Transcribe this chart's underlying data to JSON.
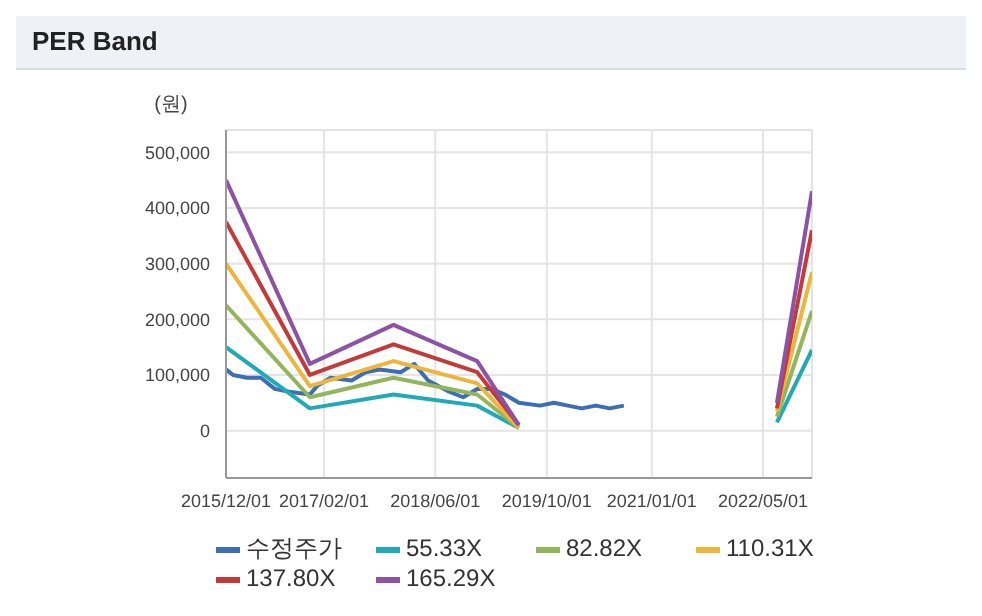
{
  "chart_data": {
    "type": "line",
    "title": "PER Band",
    "ylabel": "(원)",
    "x": [
      "2015-12-01",
      "2016-12-01",
      "2017-12-01",
      "2018-12-01",
      "2019-06-01",
      "2021-01-01",
      "2022-07-01",
      "2022-12-01"
    ],
    "series": [
      {
        "name": "수정주가",
        "color": "#3d6db5",
        "x": [
          "2015-12-01",
          "2016-01-01",
          "2016-03-01",
          "2016-05-01",
          "2016-07-01",
          "2016-09-01",
          "2016-12-01",
          "2017-01-01",
          "2017-03-01",
          "2017-06-01",
          "2017-08-01",
          "2017-10-01",
          "2018-01-01",
          "2018-03-01",
          "2018-05-01",
          "2018-08-01",
          "2018-10-01",
          "2018-12-01",
          "2019-02-01",
          "2019-04-01",
          "2019-06-01",
          "2019-09-01",
          "2019-11-01",
          "2020-01-01",
          "2020-03-01",
          "2020-05-01",
          "2020-07-01",
          "2020-09-01"
        ],
        "values": [
          110000,
          100000,
          95000,
          95000,
          75000,
          70000,
          65000,
          80000,
          95000,
          90000,
          105000,
          110000,
          105000,
          120000,
          90000,
          70000,
          60000,
          75000,
          75000,
          65000,
          50000,
          45000,
          50000,
          45000,
          40000,
          45000,
          40000,
          45000
        ]
      },
      {
        "name": "55.33X",
        "color": "#20aab8",
        "values": [
          150000,
          40000,
          65000,
          45000,
          5000,
          null,
          15000,
          145000
        ]
      },
      {
        "name": "82.82X",
        "color": "#93b55c",
        "values": [
          225000,
          60000,
          95000,
          65000,
          5000,
          null,
          25000,
          215000
        ]
      },
      {
        "name": "110.31X",
        "color": "#edb53a",
        "values": [
          300000,
          80000,
          125000,
          85000,
          5000,
          null,
          35000,
          285000
        ]
      },
      {
        "name": "137.80X",
        "color": "#c43a3a",
        "values": [
          375000,
          100000,
          155000,
          105000,
          10000,
          null,
          40000,
          360000
        ]
      },
      {
        "name": "165.29X",
        "color": "#8c52a3",
        "values": [
          450000,
          120000,
          190000,
          125000,
          10000,
          null,
          50000,
          430000
        ]
      }
    ],
    "xlim": [
      "2015-12-01",
      "2022-12-01"
    ],
    "xticks": [
      {
        "value": "2015-12-01",
        "label": "2015/12/01"
      },
      {
        "value": "2017-02-01",
        "label": "2017/02/01"
      },
      {
        "value": "2018-06-01",
        "label": "2018/06/01"
      },
      {
        "value": "2019-10-01",
        "label": "2019/10/01"
      },
      {
        "value": "2021-01-01",
        "label": "2021/01/01"
      },
      {
        "value": "2022-05-01",
        "label": "2022/05/01"
      }
    ],
    "ylim": [
      -85000,
      540000
    ],
    "yticks": [
      {
        "value": 0,
        "label": "0"
      },
      {
        "value": 100000,
        "label": "100,000"
      },
      {
        "value": 200000,
        "label": "200,000"
      },
      {
        "value": 300000,
        "label": "300,000"
      },
      {
        "value": 400000,
        "label": "400,000"
      },
      {
        "value": 500000,
        "label": "500,000"
      }
    ],
    "grid": true,
    "legend": "bottom",
    "marker": "none",
    "line_style": "solid"
  }
}
